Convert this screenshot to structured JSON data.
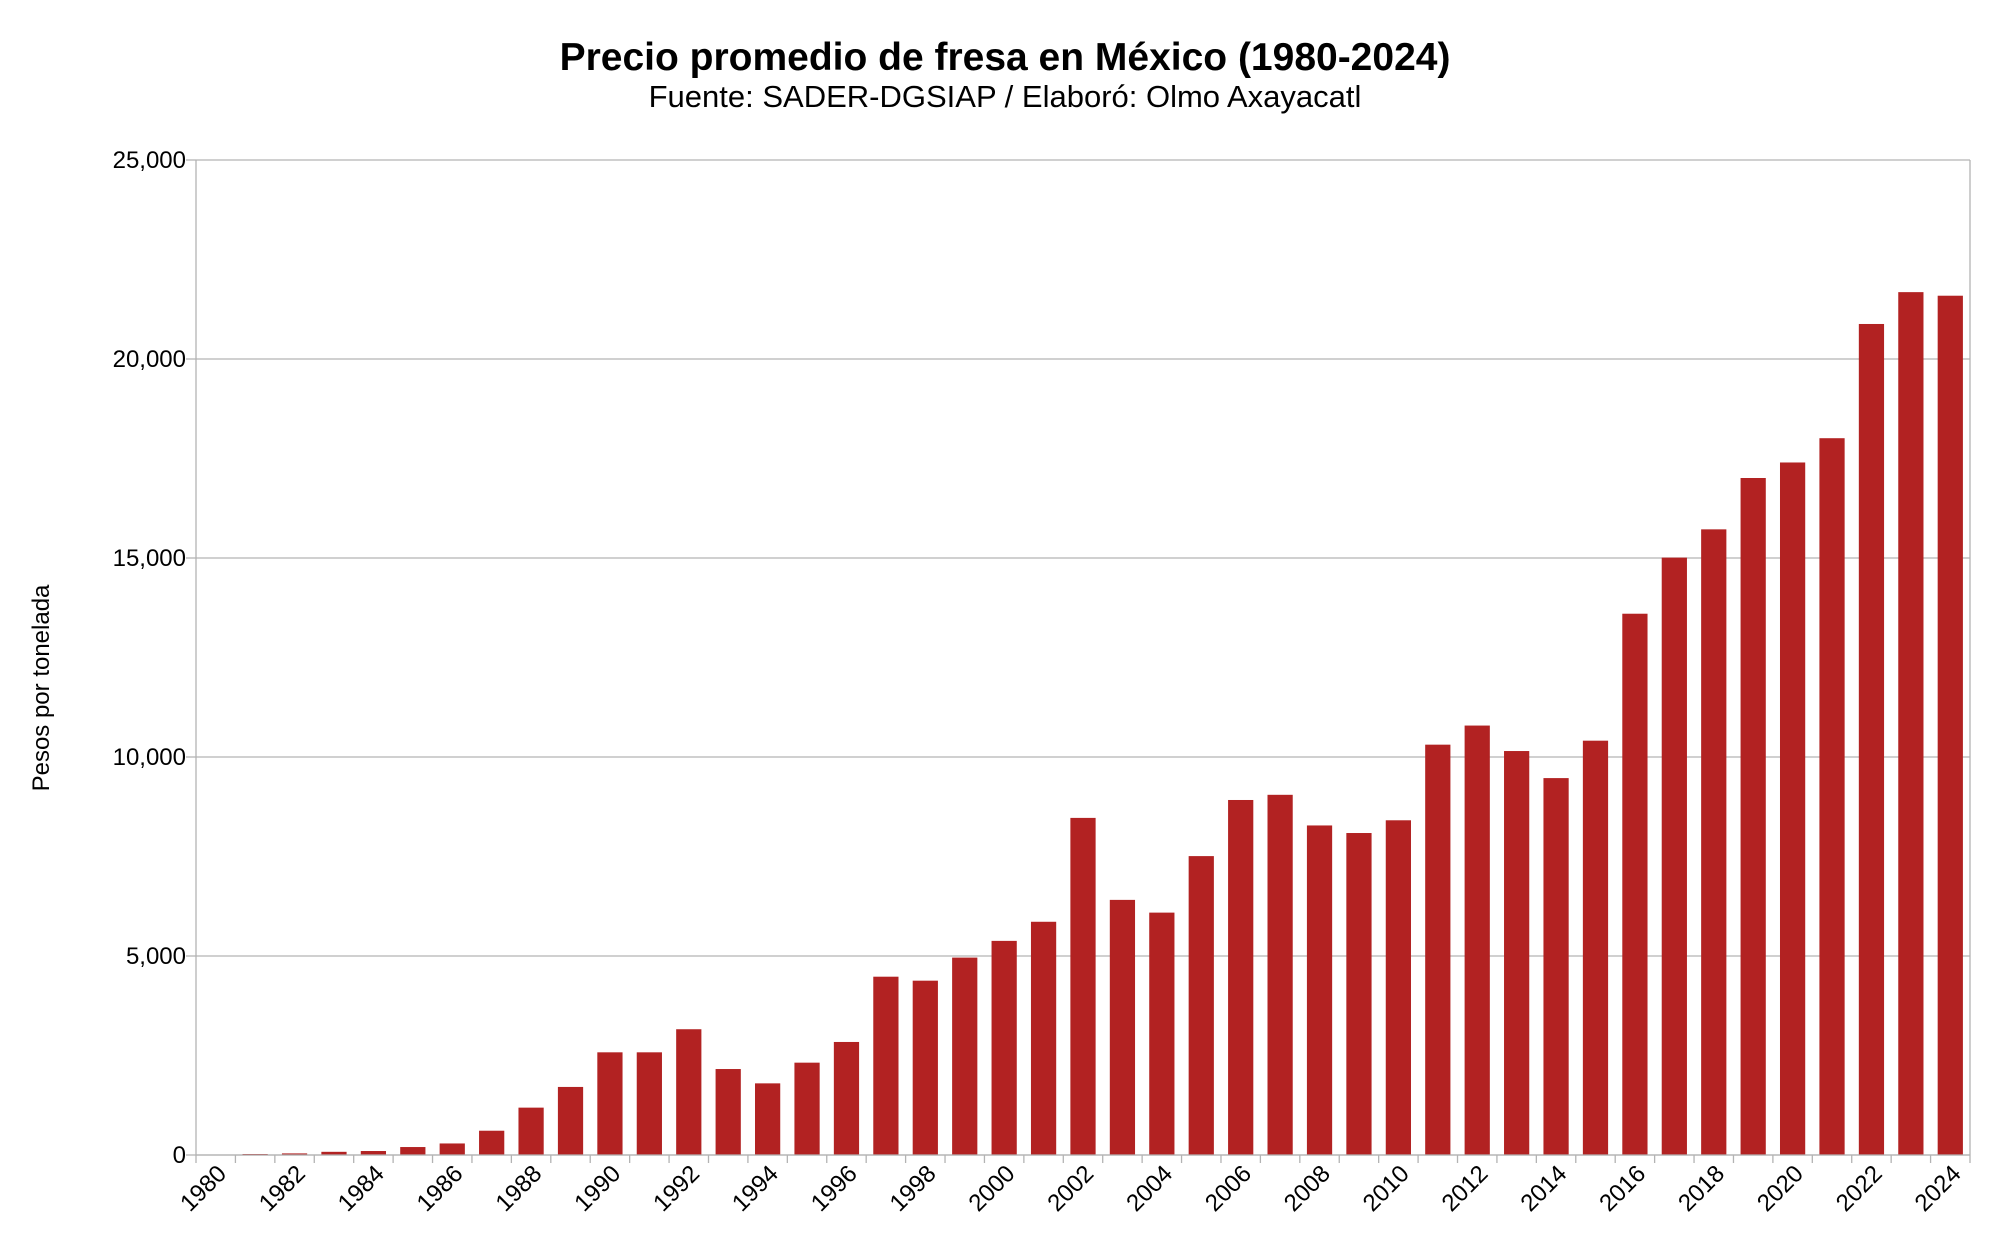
{
  "chart_data": {
    "type": "bar",
    "title": "Precio promedio de fresa en México (1980-2024)",
    "subtitle": "Fuente: SADER-DGSIAP / Elaboró: Olmo Axayacatl",
    "xlabel": "",
    "ylabel": "Pesos por tonelada",
    "ylim": [
      0,
      25000
    ],
    "yticks": [
      "0",
      "5,000",
      "10,000",
      "15,000",
      "20,000",
      "25,000"
    ],
    "grid": true,
    "bar_color": "#b22222",
    "categories": [
      1980,
      1981,
      1982,
      1983,
      1984,
      1985,
      1986,
      1987,
      1988,
      1989,
      1990,
      1991,
      1992,
      1993,
      1994,
      1995,
      1996,
      1997,
      1998,
      1999,
      2000,
      2001,
      2002,
      2003,
      2004,
      2005,
      2006,
      2007,
      2008,
      2009,
      2010,
      2011,
      2012,
      2013,
      2014,
      2015,
      2016,
      2017,
      2018,
      2019,
      2020,
      2021,
      2022,
      2023,
      2024
    ],
    "xtick_labels": [
      "1980",
      "1982",
      "1984",
      "1986",
      "1988",
      "1990",
      "1992",
      "1994",
      "1996",
      "1998",
      "2000",
      "2002",
      "2004",
      "2006",
      "2008",
      "2010",
      "2012",
      "2014",
      "2016",
      "2018",
      "2020",
      "2022",
      "2024"
    ],
    "values": [
      10,
      25,
      40,
      80,
      100,
      200,
      290,
      610,
      1190,
      1710,
      2580,
      2580,
      3160,
      2160,
      1800,
      2320,
      2840,
      4480,
      4380,
      4960,
      5380,
      5860,
      8470,
      6410,
      6090,
      7510,
      8920,
      9050,
      8280,
      8090,
      8410,
      10310,
      10790,
      10150,
      9470,
      10410,
      13600,
      15010,
      15720,
      17010,
      17400,
      18010,
      20880,
      21680,
      21590
    ]
  }
}
